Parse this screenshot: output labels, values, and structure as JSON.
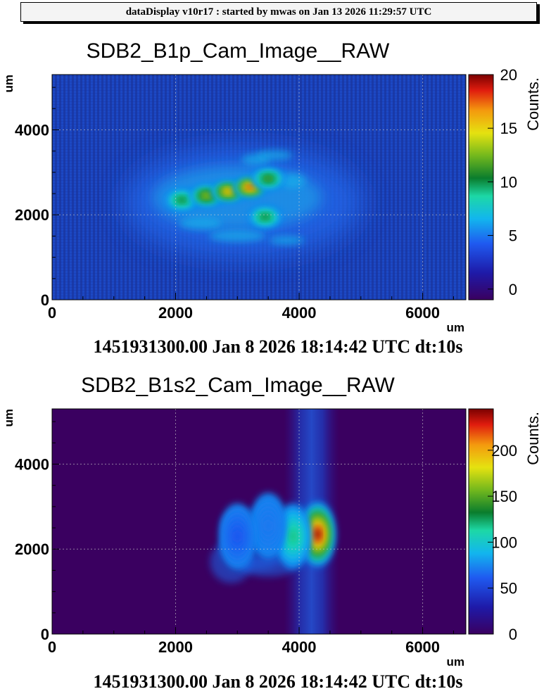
{
  "header": {
    "text": "dataDisplay v10r17 : started by mwas on Jan 13 2026 11:29:57 UTC"
  },
  "chart_data": [
    {
      "type": "heatmap",
      "title": "SDB2_B1p_Cam_Image__RAW",
      "xlabel": "um",
      "ylabel": "um",
      "zlabel": "Counts.",
      "footer": "1451931300.00 Jan 8 2026 18:14:42 UTC dt:10s",
      "xlim": [
        0,
        6700
      ],
      "ylim": [
        0,
        5300
      ],
      "zlim": [
        -1,
        20
      ],
      "x_ticks": [
        "0",
        "2000",
        "4000",
        "6000"
      ],
      "y_ticks": [
        "0",
        "2000",
        "4000"
      ],
      "z_ticks": [
        "0",
        "5",
        "10",
        "15",
        "20"
      ],
      "grid": true,
      "blobs": [
        {
          "x": 2100,
          "y": 2350,
          "peak": 11
        },
        {
          "x": 2500,
          "y": 2450,
          "peak": 14
        },
        {
          "x": 2850,
          "y": 2550,
          "peak": 17
        },
        {
          "x": 3200,
          "y": 2650,
          "peak": 19
        },
        {
          "x": 3500,
          "y": 2850,
          "peak": 12
        },
        {
          "x": 3450,
          "y": 1950,
          "peak": 11
        }
      ]
    },
    {
      "type": "heatmap",
      "title": "SDB2_B1s2_Cam_Image__RAW",
      "xlabel": "um",
      "ylabel": "um",
      "zlabel": "Counts.",
      "footer": "1451931300.00 Jan 8 2026 18:14:42 UTC dt:10s",
      "xlim": [
        0,
        6700
      ],
      "ylim": [
        0,
        5300
      ],
      "zlim": [
        0,
        245
      ],
      "x_ticks": [
        "0",
        "2000",
        "4000",
        "6000"
      ],
      "y_ticks": [
        "0",
        "2000",
        "4000"
      ],
      "z_ticks": [
        "0",
        "50",
        "100",
        "150",
        "200"
      ],
      "grid": true,
      "blobs": [
        {
          "x": 4300,
          "y": 2350,
          "peak": 245
        },
        {
          "x": 3900,
          "y": 2300,
          "peak": 120
        },
        {
          "x": 3500,
          "y": 2550,
          "peak": 70
        },
        {
          "x": 3000,
          "y": 2300,
          "peak": 60
        }
      ]
    }
  ]
}
